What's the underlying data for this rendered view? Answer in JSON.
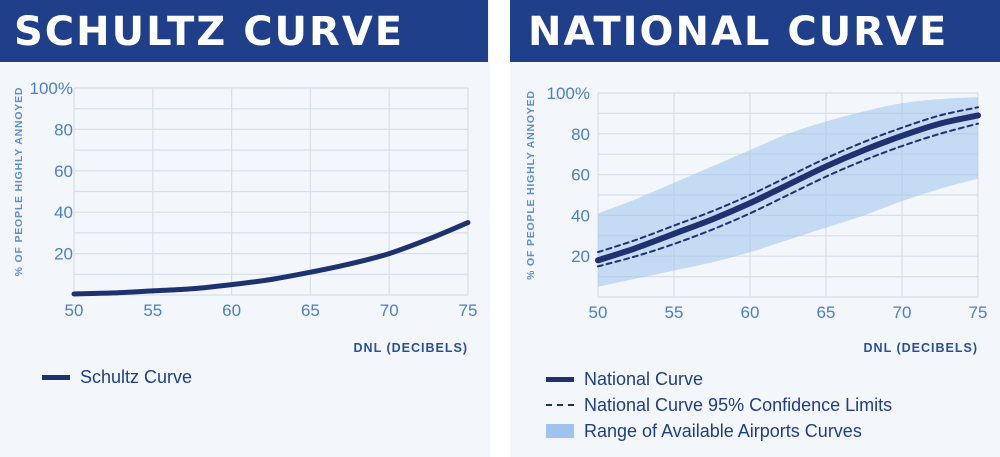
{
  "left_panel": {
    "banner": "SCHULTZ CURVE",
    "legend": {
      "curve": "Schultz Curve"
    }
  },
  "right_panel": {
    "banner": "NATIONAL CURVE",
    "legend": {
      "curve": "National Curve",
      "confidence": "National Curve 95% Confidence Limits",
      "range": "Range of Available Airports Curves"
    }
  },
  "colors": {
    "banner": "#1f3f8a",
    "curve": "#1f3270",
    "band": "#9ec3ec",
    "grid": "#d7dfe9",
    "tick": "#4a80c8"
  },
  "chart_data": [
    {
      "type": "line",
      "title": "SCHULTZ CURVE",
      "xlabel": "DNL (DECIBELS)",
      "ylabel": "% OF PEOPLE HIGHLY ANNOYED",
      "xlim": [
        50,
        75
      ],
      "ylim": [
        0,
        100
      ],
      "x_ticks": [
        "50",
        "55",
        "60",
        "65",
        "70",
        "75"
      ],
      "y_ticks": [
        "20",
        "40",
        "60",
        "80",
        "100%"
      ],
      "series": [
        {
          "name": "Schultz Curve",
          "x": [
            50,
            52.5,
            55,
            57.5,
            60,
            62.5,
            65,
            67.5,
            70,
            72.5,
            75
          ],
          "y": [
            0.5,
            1,
            2,
            3,
            5,
            7.5,
            11,
            15,
            20,
            27,
            35
          ]
        }
      ]
    },
    {
      "type": "line",
      "title": "NATIONAL CURVE",
      "xlabel": "DNL (DECIBELS)",
      "ylabel": "% OF PEOPLE HIGHLY ANNOYED",
      "xlim": [
        50,
        75
      ],
      "ylim": [
        0,
        100
      ],
      "x_ticks": [
        "50",
        "55",
        "60",
        "65",
        "70",
        "75"
      ],
      "y_ticks": [
        "20",
        "40",
        "60",
        "80",
        "100%"
      ],
      "series": [
        {
          "name": "National Curve",
          "x": [
            50,
            52.5,
            55,
            57.5,
            60,
            62.5,
            65,
            67.5,
            70,
            72.5,
            75
          ],
          "y": [
            18,
            24,
            31,
            38,
            46,
            55,
            64,
            72,
            79,
            85,
            89
          ]
        },
        {
          "name": "National Curve 95% Confidence Limits (upper)",
          "x": [
            50,
            52.5,
            55,
            57.5,
            60,
            62.5,
            65,
            67.5,
            70,
            72.5,
            75
          ],
          "y": [
            22,
            28,
            35,
            42,
            50,
            59,
            68,
            76,
            83,
            89,
            93
          ]
        },
        {
          "name": "National Curve 95% Confidence Limits (lower)",
          "x": [
            50,
            52.5,
            55,
            57.5,
            60,
            62.5,
            65,
            67.5,
            70,
            72.5,
            75
          ],
          "y": [
            15,
            20,
            26,
            33,
            41,
            50,
            59,
            67,
            74,
            80,
            85
          ]
        }
      ],
      "band": {
        "name": "Range of Available Airports Curves",
        "x": [
          50,
          52.5,
          55,
          57.5,
          60,
          62.5,
          65,
          67.5,
          70,
          72.5,
          75
        ],
        "upper": [
          41,
          48,
          56,
          64,
          72,
          80,
          86,
          91,
          95,
          97,
          98
        ],
        "lower": [
          5,
          9,
          13,
          17,
          22,
          28,
          34,
          40,
          47,
          53,
          58
        ]
      }
    }
  ]
}
